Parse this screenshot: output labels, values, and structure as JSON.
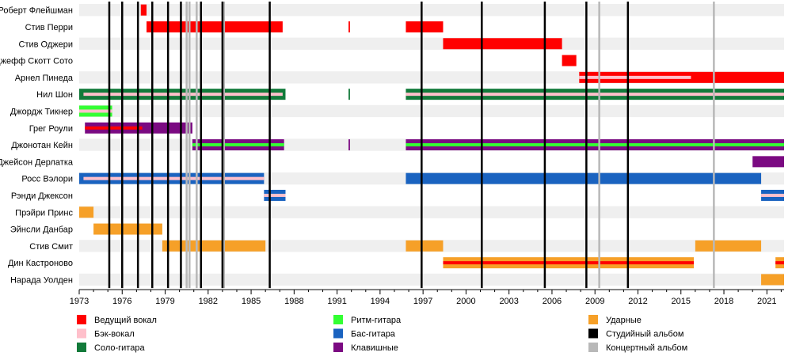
{
  "chart_data": {
    "type": "timeline",
    "members": [
      "Роберт Флейшман",
      "Стив Перри",
      "Стив Оджери",
      "Джефф Скотт Сото",
      "Арнел Пинеда",
      "Нил Шон",
      "Джордж Тикнер",
      "Грег Роули",
      "Джонотан Кейн",
      "Джейсон Дерлатка",
      "Росс Вэлори",
      "Рэнди Джексон",
      "Прэйри Принс",
      "Эйнсли Данбар",
      "Стив Смит",
      "Дин Кастроново",
      "Нарада Уолден"
    ],
    "x_ticks": [
      "1973",
      "1976",
      "1979",
      "1982",
      "1985",
      "1988",
      "1991",
      "1994",
      "1997",
      "2000",
      "2003",
      "2006",
      "2009",
      "2012",
      "2015",
      "2018",
      "2021"
    ],
    "xlim": [
      1973,
      2022.2
    ],
    "colors": {
      "lead_vocals": "#ff0000",
      "backing_vocals": "#ffc0cb",
      "lead_guitar": "#127a3a",
      "rhythm_guitar": "#33ff33",
      "bass": "#1a63c0",
      "keyboards": "#7b0a82",
      "drums": "#f6a028",
      "studio_album": "#000000",
      "live_album": "#b8b8b8"
    },
    "studio_albums": [
      1975.1,
      1976.0,
      1977.1,
      1978.1,
      1979.2,
      1980.1,
      1981.5,
      1983.0,
      1986.3,
      1996.9,
      2001.1,
      2005.5,
      2008.4,
      2011.3
    ],
    "live_albums": [
      1980.5,
      1980.7,
      1981.2,
      1983.1,
      2009.3,
      2017.3
    ],
    "bars": [
      {
        "row": 0,
        "role": "lead_vocals",
        "start": 1977.3,
        "end": 1977.7
      },
      {
        "row": 1,
        "role": "lead_vocals",
        "start": 1977.7,
        "end": 1987.2
      },
      {
        "row": 1,
        "role": "lead_vocals",
        "start": 1991.8,
        "end": 1991.9
      },
      {
        "row": 1,
        "role": "lead_vocals",
        "start": 1995.8,
        "end": 1998.4
      },
      {
        "row": 2,
        "role": "lead_vocals",
        "start": 1998.4,
        "end": 2006.7
      },
      {
        "row": 3,
        "role": "lead_vocals",
        "start": 2006.7,
        "end": 2007.7
      },
      {
        "row": 4,
        "role": "lead_vocals",
        "start": 2007.9,
        "end": 2022.2,
        "inner": "backing_vocals",
        "inner_start": 2007.9,
        "inner_end": 2015.7
      },
      {
        "row": 5,
        "role": "lead_guitar",
        "start": 1973.0,
        "end": 1987.4,
        "inner": "backing_vocals",
        "inner_start": 1973.3,
        "inner_end": 1987.2
      },
      {
        "row": 5,
        "role": "lead_guitar",
        "start": 1991.8,
        "end": 1991.9
      },
      {
        "row": 5,
        "role": "lead_guitar",
        "start": 1995.8,
        "end": 2022.2,
        "inner": "backing_vocals",
        "inner_start": 1995.8,
        "inner_end": 2022.2
      },
      {
        "row": 6,
        "role": "rhythm_guitar",
        "start": 1973.0,
        "end": 1975.3,
        "inner": "backing_vocals",
        "inner_start": 1973.0,
        "inner_end": 1975.3
      },
      {
        "row": 7,
        "role": "keyboards",
        "start": 1973.4,
        "end": 1980.9,
        "inner": "lead_vocals",
        "inner_start": 1973.4,
        "inner_end": 1977.4
      },
      {
        "row": 8,
        "role": "keyboards",
        "start": 1980.9,
        "end": 1987.3,
        "inner": "rhythm_guitar",
        "inner_start": 1980.9,
        "inner_end": 1987.3
      },
      {
        "row": 8,
        "role": "keyboards",
        "start": 1991.8,
        "end": 1991.9
      },
      {
        "row": 8,
        "role": "keyboards",
        "start": 1995.8,
        "end": 2022.2,
        "inner": "rhythm_guitar",
        "inner_start": 1995.8,
        "inner_end": 2022.2
      },
      {
        "row": 9,
        "role": "keyboards",
        "start": 2020.0,
        "end": 2022.2
      },
      {
        "row": 10,
        "role": "bass",
        "start": 1973.0,
        "end": 1985.9,
        "inner": "backing_vocals",
        "inner_start": 1973.3,
        "inner_end": 1985.9
      },
      {
        "row": 10,
        "role": "bass",
        "start": 1995.8,
        "end": 2020.6
      },
      {
        "row": 11,
        "role": "bass",
        "start": 1985.9,
        "end": 1987.4,
        "inner": "backing_vocals",
        "inner_start": 1985.9,
        "inner_end": 1987.4
      },
      {
        "row": 11,
        "role": "bass",
        "start": 2020.6,
        "end": 2022.2,
        "inner": "backing_vocals",
        "inner_start": 2020.6,
        "inner_end": 2022.2
      },
      {
        "row": 12,
        "role": "drums",
        "start": 1973.0,
        "end": 1974.0
      },
      {
        "row": 13,
        "role": "drums",
        "start": 1974.0,
        "end": 1978.8
      },
      {
        "row": 14,
        "role": "drums",
        "start": 1978.8,
        "end": 1986.0
      },
      {
        "row": 14,
        "role": "drums",
        "start": 1995.8,
        "end": 1998.4
      },
      {
        "row": 14,
        "role": "drums",
        "start": 2016.0,
        "end": 2020.6
      },
      {
        "row": 15,
        "role": "drums",
        "start": 1998.4,
        "end": 2015.9,
        "inner": "lead_vocals",
        "inner_start": 1998.4,
        "inner_end": 2015.9
      },
      {
        "row": 15,
        "role": "drums",
        "start": 2021.6,
        "end": 2022.2,
        "inner": "lead_vocals",
        "inner_start": 2021.6,
        "inner_end": 2022.2
      },
      {
        "row": 16,
        "role": "drums",
        "start": 2020.6,
        "end": 2022.2
      }
    ],
    "legend": [
      {
        "role": "lead_vocals",
        "label": "Ведущий вокал"
      },
      {
        "role": "backing_vocals",
        "label": "Бэк-вокал"
      },
      {
        "role": "lead_guitar",
        "label": "Соло-гитара"
      },
      {
        "role": "rhythm_guitar",
        "label": "Ритм-гитара"
      },
      {
        "role": "bass",
        "label": "Бас-гитара"
      },
      {
        "role": "keyboards",
        "label": "Клавишные"
      },
      {
        "role": "drums",
        "label": "Ударные"
      },
      {
        "role": "studio_album",
        "label": "Студийный альбом"
      },
      {
        "role": "live_album",
        "label": "Концертный альбом"
      }
    ]
  }
}
